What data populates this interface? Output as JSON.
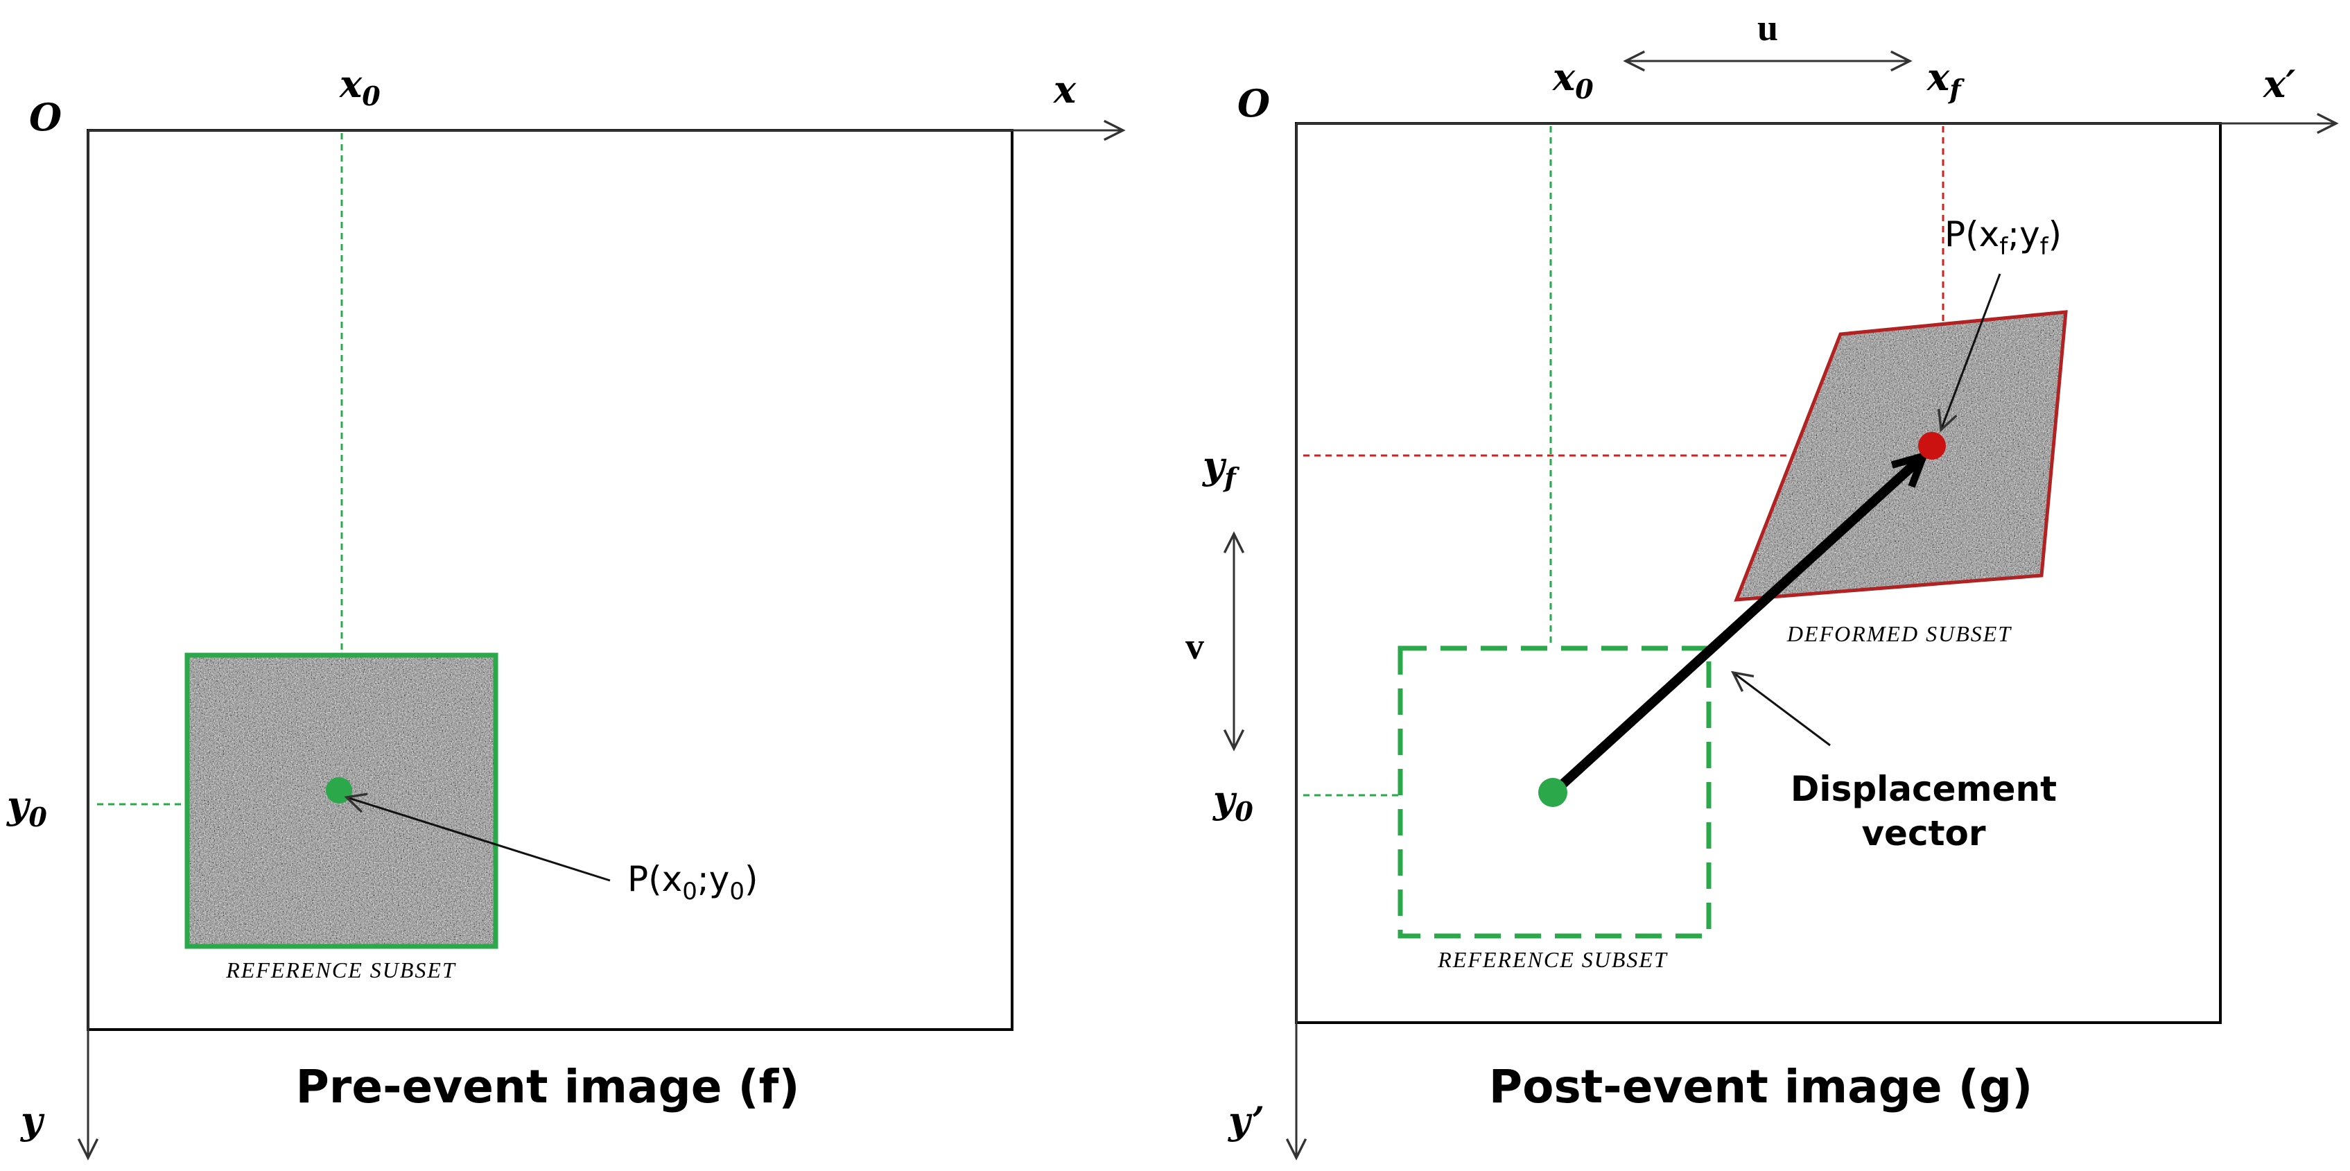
{
  "left_panel": {
    "origin_label": "O",
    "x_axis_label": "x",
    "y_axis_label": "y",
    "x0_label": "x",
    "x0_sub": "0",
    "y0_label": "y",
    "y0_sub": "0",
    "point_label_prefix": "P(x",
    "point_label_sub1": "0",
    "point_label_mid": ";y",
    "point_label_sub2": "0",
    "point_label_suffix": ")",
    "subset_label": "REFERENCE SUBSET",
    "caption": "Pre-event image (f)"
  },
  "right_panel": {
    "origin_label": "O",
    "x_axis_label": "x′",
    "y_axis_label": "y’",
    "x0_label": "x",
    "x0_sub": "0",
    "xf_label": "x",
    "xf_sub": "f",
    "y0_label": "y",
    "y0_sub": "0",
    "yf_label": "y",
    "yf_sub": "f",
    "u_label": "u",
    "v_label": "v",
    "point_label_prefix": "P(x",
    "point_label_sub1": "f",
    "point_label_mid": ";y",
    "point_label_sub2": "f",
    "point_label_suffix": ")",
    "reference_subset_label": "REFERENCE SUBSET",
    "deformed_subset_label": "DEFORMED SUBSET",
    "displacement_label_line1": "Displacement",
    "displacement_label_line2": "vector",
    "caption": "Post-event image (g)"
  },
  "colors": {
    "frame": "#000000",
    "reference": "#2aa84a",
    "deformed": "#b22222",
    "guide_green": "#2aa84a",
    "guide_red": "#cc2222"
  }
}
